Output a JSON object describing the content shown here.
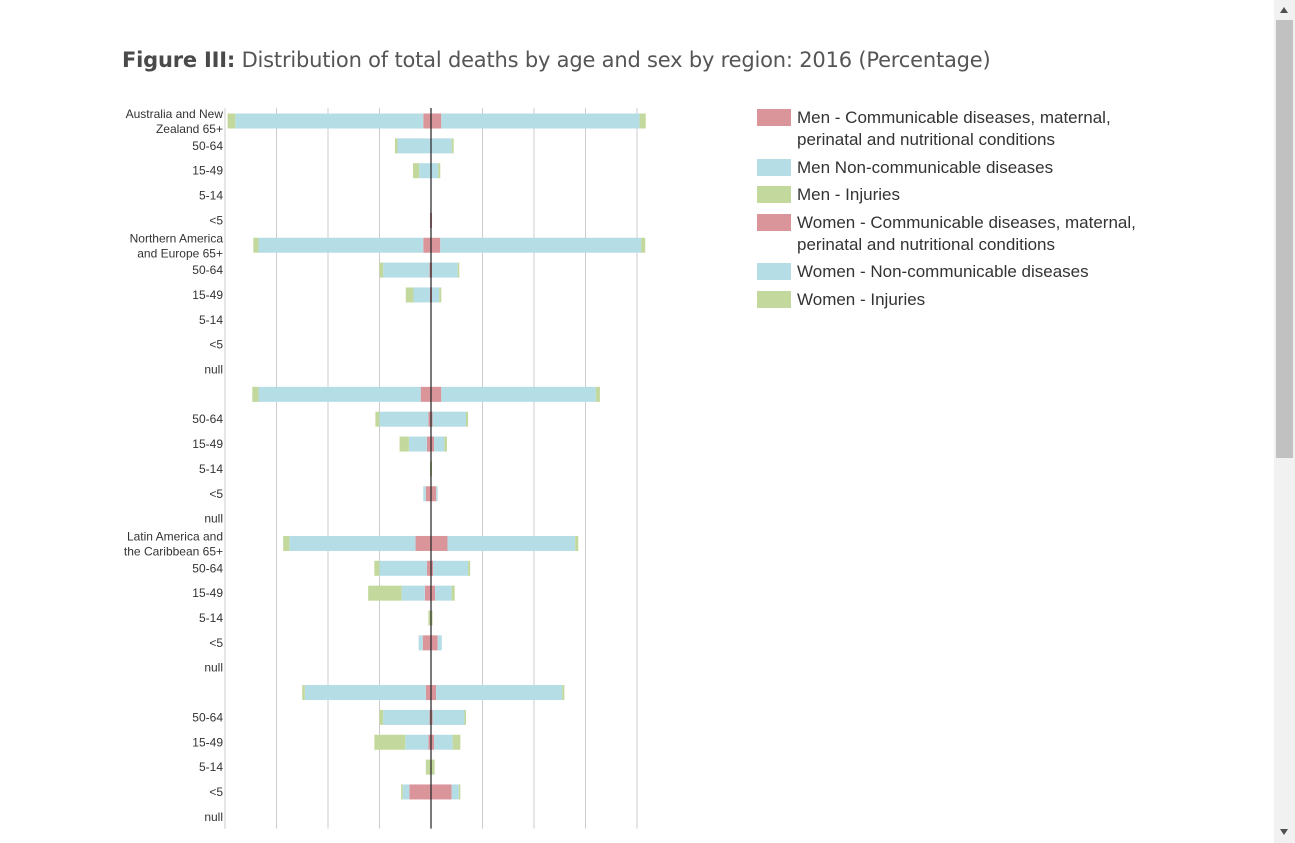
{
  "title": {
    "bold": "Figure III:",
    "rest": "Distribution of total deaths by age and sex by region: 2016 (Percentage)"
  },
  "legend": [
    {
      "label": "Men - Communicable diseases, maternal, perinatal and nutritional conditions",
      "color": "#d9959a"
    },
    {
      "label": "Men Non-communicable diseases",
      "color": "#b5dde6"
    },
    {
      "label": "Men - Injuries",
      "color": "#c3d89c"
    },
    {
      "label": "Women - Communicable diseases, maternal, perinatal and nutritional conditions",
      "color": "#d9959a"
    },
    {
      "label": "Women - Non-communicable diseases",
      "color": "#b5dde6"
    },
    {
      "label": "Women - Injuries",
      "color": "#c3d89c"
    }
  ],
  "chart_data": {
    "type": "bar",
    "orientation": "horizontal-population-pyramid",
    "xlim": [
      -40,
      40
    ],
    "grid": true,
    "legend_position": "right",
    "colors": {
      "communicable": "#d9959a",
      "noncommunicable": "#b5dde6",
      "injuries": "#c3d89c",
      "axis": "#222222",
      "grid": "#cccccc"
    },
    "rows": [
      {
        "label": "Australia and New Zealand 65+",
        "men": [
          1.5,
          36.5,
          1.5
        ],
        "women": [
          2,
          38.5,
          1.2
        ]
      },
      {
        "label": "50-64",
        "men": [
          0,
          6.5,
          0.5
        ],
        "women": [
          0,
          4,
          0.4
        ]
      },
      {
        "label": "15-49",
        "men": [
          0,
          2.3,
          1.2
        ],
        "women": [
          0,
          1.4,
          0.4
        ]
      },
      {
        "label": "5-14",
        "men": [
          0,
          0,
          0
        ],
        "women": [
          0,
          0,
          0
        ]
      },
      {
        "label": "<5",
        "men": [
          0.2,
          0,
          0
        ],
        "women": [
          0.2,
          0,
          0
        ]
      },
      {
        "label": "Northern America and Europe 65+",
        "men": [
          1.5,
          32,
          1
        ],
        "women": [
          1.8,
          39,
          0.8
        ]
      },
      {
        "label": "50-64",
        "men": [
          0.3,
          9,
          0.7
        ],
        "women": [
          0.2,
          5,
          0.3
        ]
      },
      {
        "label": "15-49",
        "men": [
          0.2,
          3.2,
          1.5
        ],
        "women": [
          0.2,
          1.4,
          0.4
        ]
      },
      {
        "label": "5-14",
        "men": [
          0,
          0,
          0
        ],
        "women": [
          0,
          0,
          0
        ]
      },
      {
        "label": "<5",
        "men": [
          0.1,
          0,
          0
        ],
        "women": [
          0.1,
          0,
          0
        ]
      },
      {
        "label": "null",
        "men": [
          0,
          0,
          0
        ],
        "women": [
          0,
          0,
          0
        ]
      },
      {
        "label": "",
        "men": [
          2,
          31.5,
          1.2
        ],
        "women": [
          2,
          30,
          0.8
        ]
      },
      {
        "label": "50-64",
        "men": [
          0.5,
          9.5,
          0.8
        ],
        "women": [
          0.3,
          6.5,
          0.4
        ]
      },
      {
        "label": "15-49",
        "men": [
          0.8,
          3.5,
          1.8
        ],
        "women": [
          0.6,
          2,
          0.5
        ]
      },
      {
        "label": "5-14",
        "men": [
          0.1,
          0,
          0.1
        ],
        "women": [
          0.1,
          0,
          0.1
        ]
      },
      {
        "label": "<5",
        "men": [
          1,
          0.5,
          0
        ],
        "women": [
          1,
          0.3,
          0
        ]
      },
      {
        "label": "null",
        "men": [
          0,
          0,
          0
        ],
        "women": [
          0,
          0,
          0
        ]
      },
      {
        "label": "Latin America and the Caribbean 65+",
        "men": [
          3,
          24.5,
          1.2
        ],
        "women": [
          3.2,
          24.8,
          0.6
        ]
      },
      {
        "label": "50-64",
        "men": [
          0.8,
          9.2,
          1
        ],
        "women": [
          0.4,
          6.8,
          0.4
        ]
      },
      {
        "label": "15-49",
        "men": [
          1.2,
          4.5,
          6.5
        ],
        "women": [
          0.8,
          3.2,
          0.6
        ]
      },
      {
        "label": "5-14",
        "men": [
          0,
          0,
          0.5
        ],
        "women": [
          0,
          0,
          0.3
        ]
      },
      {
        "label": "<5",
        "men": [
          1.6,
          0.8,
          0
        ],
        "women": [
          1.3,
          0.8,
          0
        ]
      },
      {
        "label": "null",
        "men": [
          0,
          0,
          0
        ],
        "women": [
          0,
          0,
          0
        ]
      },
      {
        "label": "",
        "men": [
          1,
          23.5,
          0.5
        ],
        "women": [
          1,
          24.5,
          0.4
        ]
      },
      {
        "label": "50-64",
        "men": [
          0.3,
          9,
          0.7
        ],
        "women": [
          0.3,
          6.2,
          0.3
        ]
      },
      {
        "label": "15-49",
        "men": [
          0.5,
          4.5,
          6
        ],
        "women": [
          0.6,
          3.6,
          1.5
        ]
      },
      {
        "label": "5-14",
        "men": [
          0,
          0,
          1
        ],
        "women": [
          0,
          0,
          0.7
        ]
      },
      {
        "label": "<5",
        "men": [
          4.2,
          1.3,
          0.3
        ],
        "women": [
          4,
          1.4,
          0.3
        ]
      },
      {
        "label": "null",
        "men": [
          0,
          0,
          0
        ],
        "women": [
          0,
          0,
          0
        ]
      }
    ]
  }
}
